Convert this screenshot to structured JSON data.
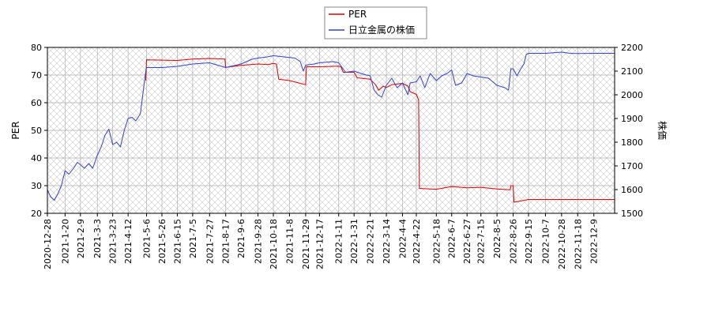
{
  "chart_data": {
    "type": "line",
    "title": "",
    "legend": {
      "placement": "top-center",
      "entries": [
        {
          "label": "PER",
          "color": "#dd0000"
        },
        {
          "label": "日立金属の株価",
          "color": "#3344cc"
        }
      ]
    },
    "y_left": {
      "label": "PER",
      "range": [
        20,
        80
      ],
      "ticks": [
        "20",
        "30",
        "40",
        "50",
        "60",
        "70",
        "80"
      ]
    },
    "y_right": {
      "label": "株価",
      "range": [
        1500,
        2200
      ],
      "ticks": [
        "1500",
        "1600",
        "1700",
        "1800",
        "1900",
        "2000",
        "2100",
        "2200"
      ]
    },
    "x": {
      "start": "2020-12-28",
      "end": "2023-01-05",
      "ticks": [
        "2020-12-28",
        "2021-1-20",
        "2021-2-9",
        "2021-3-3",
        "2021-3-23",
        "2021-4-12",
        "2021-5-6",
        "2021-5-26",
        "2021-6-15",
        "2021-7-5",
        "2021-7-27",
        "2021-8-17",
        "2021-9-6",
        "2021-9-28",
        "2021-10-18",
        "2021-11-8",
        "2021-11-29",
        "2021-12-17",
        "2022-1-11",
        "2022-1-31",
        "2022-2-21",
        "2022-3-14",
        "2022-4-4",
        "2022-4-22",
        "2022-5-18",
        "2022-6-7",
        "2022-6-27",
        "2022-7-15",
        "2022-8-5",
        "2022-8-26",
        "2022-9-15",
        "2022-10-7",
        "2022-10-28",
        "2022-11-18",
        "2022-12-9"
      ]
    },
    "grid": true,
    "series": [
      {
        "name": "PER",
        "axis": "left",
        "color": "#dd0000",
        "points": [
          [
            "2021-5-5",
            68
          ],
          [
            "2021-5-6",
            75.5
          ],
          [
            "2021-6-15",
            75.3
          ],
          [
            "2021-7-5",
            75.8
          ],
          [
            "2021-7-27",
            76
          ],
          [
            "2021-8-16",
            75.8
          ],
          [
            "2021-8-17",
            72.8
          ],
          [
            "2021-9-6",
            73.5
          ],
          [
            "2021-9-28",
            74
          ],
          [
            "2021-10-11",
            73.8
          ],
          [
            "2021-10-18",
            74.2
          ],
          [
            "2021-10-22",
            74
          ],
          [
            "2021-10-25",
            68.5
          ],
          [
            "2021-11-8",
            68
          ],
          [
            "2021-11-22",
            67
          ],
          [
            "2021-11-29",
            66.5
          ],
          [
            "2021-11-30",
            73
          ],
          [
            "2021-12-17",
            73
          ],
          [
            "2022-1-11",
            73.2
          ],
          [
            "2022-1-14",
            73
          ],
          [
            "2022-1-17",
            71
          ],
          [
            "2022-1-31",
            71
          ],
          [
            "2022-2-4",
            69
          ],
          [
            "2022-2-21",
            68.5
          ],
          [
            "2022-2-28",
            66.5
          ],
          [
            "2022-3-4",
            64.5
          ],
          [
            "2022-3-10",
            66
          ],
          [
            "2022-3-14",
            65.5
          ],
          [
            "2022-3-21",
            66.5
          ],
          [
            "2022-4-4",
            67
          ],
          [
            "2022-4-11",
            66
          ],
          [
            "2022-4-14",
            64
          ],
          [
            "2022-4-22",
            63
          ],
          [
            "2022-4-25",
            61
          ],
          [
            "2022-4-26",
            29
          ],
          [
            "2022-5-18",
            28.7
          ],
          [
            "2022-6-7",
            29.7
          ],
          [
            "2022-6-27",
            29.2
          ],
          [
            "2022-7-15",
            29.4
          ],
          [
            "2022-8-5",
            28.8
          ],
          [
            "2022-8-22",
            28.5
          ],
          [
            "2022-8-23",
            30
          ],
          [
            "2022-8-26",
            30
          ],
          [
            "2022-8-27",
            24
          ],
          [
            "2022-9-15",
            25
          ],
          [
            "2022-10-7",
            25
          ],
          [
            "2022-10-28",
            25
          ],
          [
            "2022-11-18",
            25
          ],
          [
            "2022-12-9",
            25
          ],
          [
            "2023-1-5",
            25
          ]
        ]
      },
      {
        "name": "日立金属の株価",
        "axis": "right",
        "color": "#3344cc",
        "points": [
          [
            "2020-12-28",
            1600
          ],
          [
            "2021-1-1",
            1570
          ],
          [
            "2021-1-6",
            1555
          ],
          [
            "2021-1-11",
            1585
          ],
          [
            "2021-1-15",
            1615
          ],
          [
            "2021-1-20",
            1680
          ],
          [
            "2021-1-25",
            1665
          ],
          [
            "2021-1-31",
            1690
          ],
          [
            "2021-2-5",
            1715
          ],
          [
            "2021-2-9",
            1705
          ],
          [
            "2021-2-14",
            1690
          ],
          [
            "2021-2-20",
            1710
          ],
          [
            "2021-2-25",
            1690
          ],
          [
            "2021-3-3",
            1745
          ],
          [
            "2021-3-8",
            1780
          ],
          [
            "2021-3-13",
            1830
          ],
          [
            "2021-3-18",
            1855
          ],
          [
            "2021-3-23",
            1790
          ],
          [
            "2021-3-28",
            1800
          ],
          [
            "2021-4-2",
            1780
          ],
          [
            "2021-4-7",
            1850
          ],
          [
            "2021-4-12",
            1900
          ],
          [
            "2021-4-17",
            1905
          ],
          [
            "2021-4-22",
            1890
          ],
          [
            "2021-4-28",
            1920
          ],
          [
            "2021-5-5",
            2100
          ],
          [
            "2021-5-6",
            2115
          ],
          [
            "2021-5-26",
            2115
          ],
          [
            "2021-6-15",
            2120
          ],
          [
            "2021-7-5",
            2130
          ],
          [
            "2021-7-27",
            2135
          ],
          [
            "2021-8-17",
            2115
          ],
          [
            "2021-9-6",
            2130
          ],
          [
            "2021-9-20",
            2150
          ],
          [
            "2021-9-28",
            2155
          ],
          [
            "2021-10-10",
            2160
          ],
          [
            "2021-10-18",
            2165
          ],
          [
            "2021-11-1",
            2160
          ],
          [
            "2021-11-15",
            2155
          ],
          [
            "2021-11-22",
            2140
          ],
          [
            "2021-11-26",
            2100
          ],
          [
            "2021-11-29",
            2125
          ],
          [
            "2021-12-10",
            2130
          ],
          [
            "2021-12-17",
            2135
          ],
          [
            "2022-1-4",
            2140
          ],
          [
            "2022-1-11",
            2135
          ],
          [
            "2022-1-20",
            2095
          ],
          [
            "2022-1-31",
            2100
          ],
          [
            "2022-2-14",
            2085
          ],
          [
            "2022-2-21",
            2080
          ],
          [
            "2022-2-26",
            2020
          ],
          [
            "2022-3-3",
            2000
          ],
          [
            "2022-3-8",
            1990
          ],
          [
            "2022-3-14",
            2040
          ],
          [
            "2022-3-21",
            2070
          ],
          [
            "2022-3-28",
            2030
          ],
          [
            "2022-4-4",
            2050
          ],
          [
            "2022-4-11",
            2000
          ],
          [
            "2022-4-14",
            2050
          ],
          [
            "2022-4-22",
            2055
          ],
          [
            "2022-4-27",
            2080
          ],
          [
            "2022-5-3",
            2030
          ],
          [
            "2022-5-10",
            2090
          ],
          [
            "2022-5-18",
            2060
          ],
          [
            "2022-5-25",
            2080
          ],
          [
            "2022-6-1",
            2090
          ],
          [
            "2022-6-7",
            2105
          ],
          [
            "2022-6-12",
            2040
          ],
          [
            "2022-6-20",
            2050
          ],
          [
            "2022-6-27",
            2090
          ],
          [
            "2022-7-5",
            2080
          ],
          [
            "2022-7-15",
            2075
          ],
          [
            "2022-7-25",
            2070
          ],
          [
            "2022-8-5",
            2040
          ],
          [
            "2022-8-15",
            2030
          ],
          [
            "2022-8-20",
            2020
          ],
          [
            "2022-8-23",
            2110
          ],
          [
            "2022-8-26",
            2110
          ],
          [
            "2022-8-31",
            2080
          ],
          [
            "2022-9-5",
            2110
          ],
          [
            "2022-9-9",
            2130
          ],
          [
            "2022-9-12",
            2170
          ],
          [
            "2022-9-15",
            2175
          ],
          [
            "2022-10-7",
            2175
          ],
          [
            "2022-10-28",
            2180
          ],
          [
            "2022-11-8",
            2175
          ],
          [
            "2022-11-18",
            2174
          ],
          [
            "2022-12-9",
            2175
          ],
          [
            "2023-1-5",
            2175
          ]
        ]
      }
    ]
  }
}
